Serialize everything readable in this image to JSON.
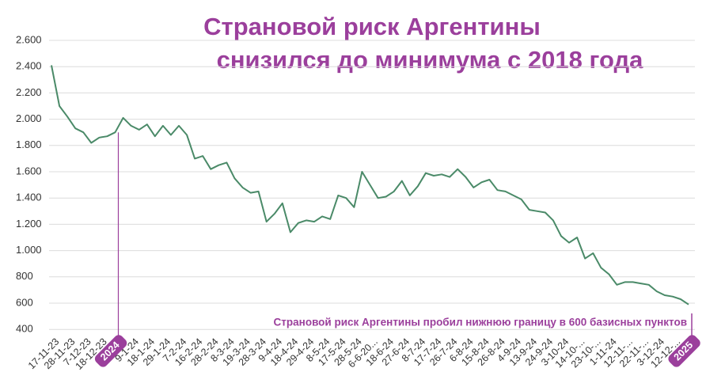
{
  "chart_data": {
    "type": "line",
    "title": [
      "Страновой риск Аргентины",
      "снизился до минимума с 2018 года"
    ],
    "annotation": "Страновой риск Аргентины пробил нижнюю границу в 600 базисных пунктов",
    "categories": [
      "17-11-23",
      null,
      "28-11-23",
      null,
      "7-12-23",
      null,
      "18-12-23",
      null,
      "2024",
      null,
      "9-1-24",
      null,
      "18-1-24",
      null,
      "29-1-24",
      null,
      "7-2-24",
      null,
      "16-2-24",
      null,
      "28-2-24",
      null,
      "8-3-24",
      null,
      "19-3-24",
      null,
      "28-3-24",
      null,
      "9-4-24",
      null,
      "18-4-24",
      null,
      "29-4-24",
      null,
      "8-5-24",
      null,
      "17-5-24",
      null,
      "28-5-24",
      null,
      "6-6-20...",
      null,
      "18-6-24",
      null,
      "27-6-24",
      null,
      "8-7-24",
      null,
      "17-7-24",
      null,
      "26-7-24",
      null,
      "6-8-24",
      null,
      "15-8-24",
      null,
      "26-8-24",
      null,
      "4-9-24",
      null,
      "13-9-24",
      null,
      "24-9-24",
      null,
      "3-10-24",
      null,
      "14-10-...",
      null,
      "23-10-...",
      null,
      "1-11-24",
      null,
      "12-11-...",
      null,
      "22-11-...",
      null,
      "3-12-24",
      null,
      "12-12-...",
      null,
      "2025"
    ],
    "series": [
      {
        "name": "Страновой риск",
        "color": "#4a8a68",
        "values": [
          2410,
          2100,
          2020,
          1930,
          1900,
          1820,
          1860,
          1870,
          1900,
          2010,
          1950,
          1920,
          1960,
          1870,
          1950,
          1880,
          1950,
          1880,
          1700,
          1720,
          1620,
          1650,
          1670,
          1550,
          1480,
          1440,
          1450,
          1220,
          1280,
          1360,
          1140,
          1210,
          1230,
          1220,
          1260,
          1240,
          1420,
          1400,
          1330,
          1600,
          1500,
          1400,
          1410,
          1450,
          1530,
          1420,
          1490,
          1590,
          1570,
          1580,
          1560,
          1620,
          1560,
          1480,
          1520,
          1540,
          1460,
          1450,
          1420,
          1390,
          1310,
          1300,
          1290,
          1230,
          1110,
          1060,
          1100,
          940,
          980,
          870,
          820,
          740,
          760,
          760,
          750,
          740,
          690,
          660,
          650,
          630,
          590
        ]
      }
    ],
    "ylim": [
      300,
      2700
    ],
    "yticks": [
      400,
      {
        "value": 600,
        "label": "600"
      },
      800,
      {
        "value": 1000,
        "label": "1.000"
      },
      {
        "value": 1200,
        "label": "1.200"
      },
      {
        "value": 1400,
        "label": "1.400"
      },
      {
        "value": 1600,
        "label": "1.600"
      },
      {
        "value": 1800,
        "label": "1.800"
      },
      {
        "value": 2000,
        "label": "2.000"
      },
      {
        "value": 2200,
        "label": "2.200"
      },
      {
        "value": 2400,
        "label": "2.400"
      },
      {
        "value": 2600,
        "label": "2.600"
      }
    ],
    "grid": true,
    "accent_color": "#9b3f9c"
  }
}
